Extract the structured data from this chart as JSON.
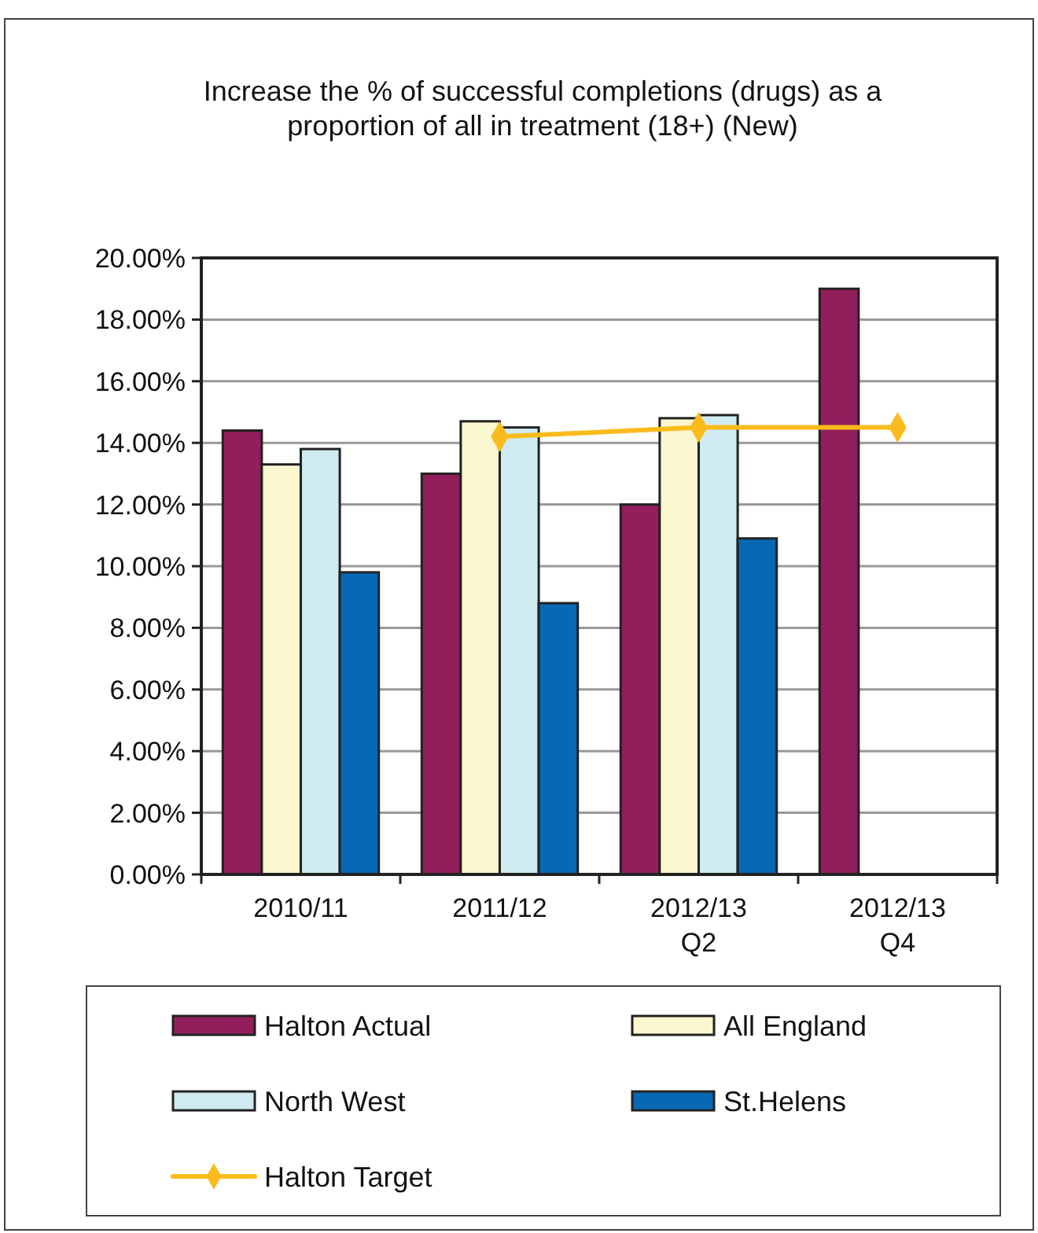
{
  "chart_data": {
    "type": "bar",
    "title": "Increase the % of successful completions (drugs) as a\nproportion of all in treatment (18+) (New)",
    "categories": [
      "2010/11",
      "2011/12",
      "2012/13\nQ2",
      "2012/13\nQ4"
    ],
    "series": [
      {
        "name": "Halton Actual",
        "color": "#921e5c",
        "values": [
          14.4,
          13.0,
          12.0,
          19.0
        ]
      },
      {
        "name": "All England",
        "color": "#faf6cf",
        "values": [
          13.3,
          14.7,
          14.8,
          null
        ]
      },
      {
        "name": "North West",
        "color": "#cfebf1",
        "values": [
          13.8,
          14.5,
          14.9,
          null
        ]
      },
      {
        "name": "St.Helens",
        "color": "#0868b4",
        "values": [
          9.8,
          8.8,
          10.9,
          null
        ]
      },
      {
        "name": "Halton Target",
        "type": "line",
        "color": "#fbbb1d",
        "marker": "diamond",
        "values": [
          null,
          14.2,
          14.5,
          14.5
        ]
      }
    ],
    "ylim": [
      0,
      20
    ],
    "yticks": [
      {
        "value": 0,
        "label": "0.00%"
      },
      {
        "value": 2,
        "label": "2.00%"
      },
      {
        "value": 4,
        "label": "4.00%"
      },
      {
        "value": 6,
        "label": "6.00%"
      },
      {
        "value": 8,
        "label": "8.00%"
      },
      {
        "value": 10,
        "label": "10.00%"
      },
      {
        "value": 12,
        "label": "12.00%"
      },
      {
        "value": 14,
        "label": "14.00%"
      },
      {
        "value": 16,
        "label": "16.00%"
      },
      {
        "value": 18,
        "label": "18.00%"
      },
      {
        "value": 20,
        "label": "20.00%"
      }
    ],
    "grid": "y",
    "legend": "bottom"
  }
}
